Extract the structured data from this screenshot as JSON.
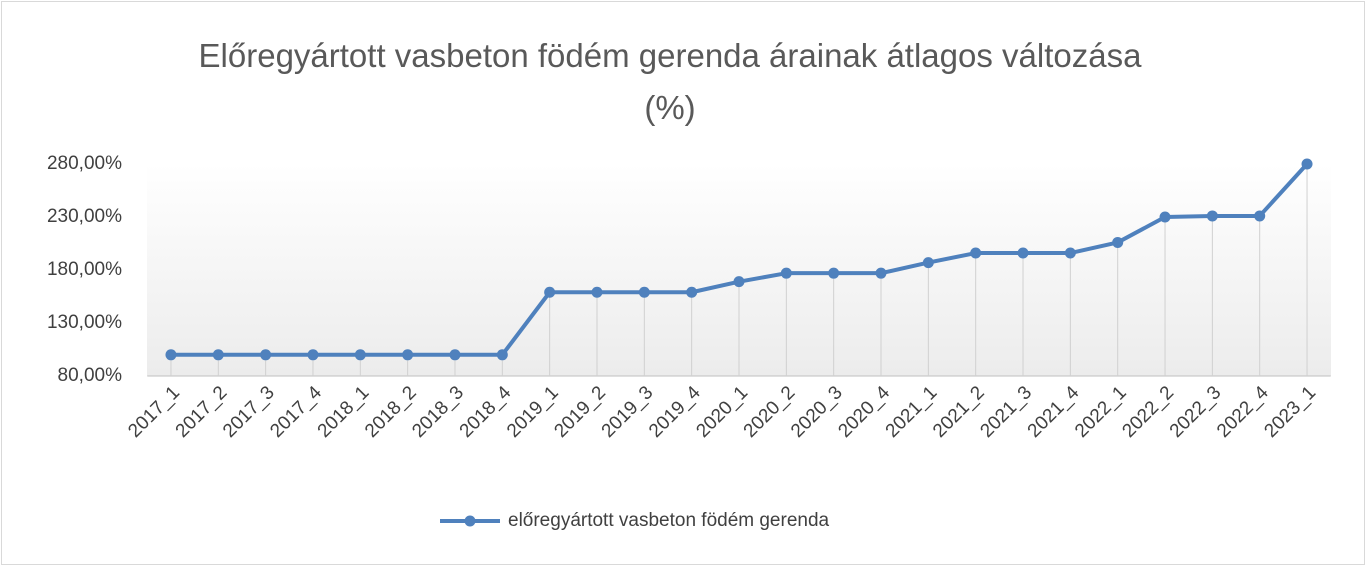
{
  "chart_data": {
    "type": "line",
    "title": "Előregyártott vasbeton födém gerenda árainak átlagos változása (%)",
    "categories": [
      "2017_1",
      "2017_2",
      "2017_3",
      "2017_4",
      "2018_1",
      "2018_2",
      "2018_3",
      "2018_4",
      "2019_1",
      "2019_2",
      "2019_3",
      "2019_4",
      "2020_1",
      "2020_2",
      "2020_3",
      "2020_4",
      "2021_1",
      "2021_2",
      "2021_3",
      "2021_4",
      "2022_1",
      "2022_2",
      "2022_3",
      "2022_4",
      "2023_1"
    ],
    "series": [
      {
        "name": "előregyártott vasbeton födém gerenda",
        "color": "#4f81bd",
        "values": [
          100,
          100,
          100,
          100,
          100,
          100,
          100,
          100,
          159,
          159,
          159,
          159,
          169,
          177,
          177,
          177,
          187,
          196,
          196,
          196,
          206,
          230,
          231,
          231,
          280
        ]
      }
    ],
    "ylim": [
      80,
      280
    ],
    "yticks": [
      {
        "value": 80,
        "label": "80,00%"
      },
      {
        "value": 130,
        "label": "130,00%"
      },
      {
        "value": 180,
        "label": "180,00%"
      },
      {
        "value": 230,
        "label": "230,00%"
      },
      {
        "value": 280,
        "label": "280,00%"
      }
    ],
    "drop_lines": true,
    "legend": "bottom"
  }
}
